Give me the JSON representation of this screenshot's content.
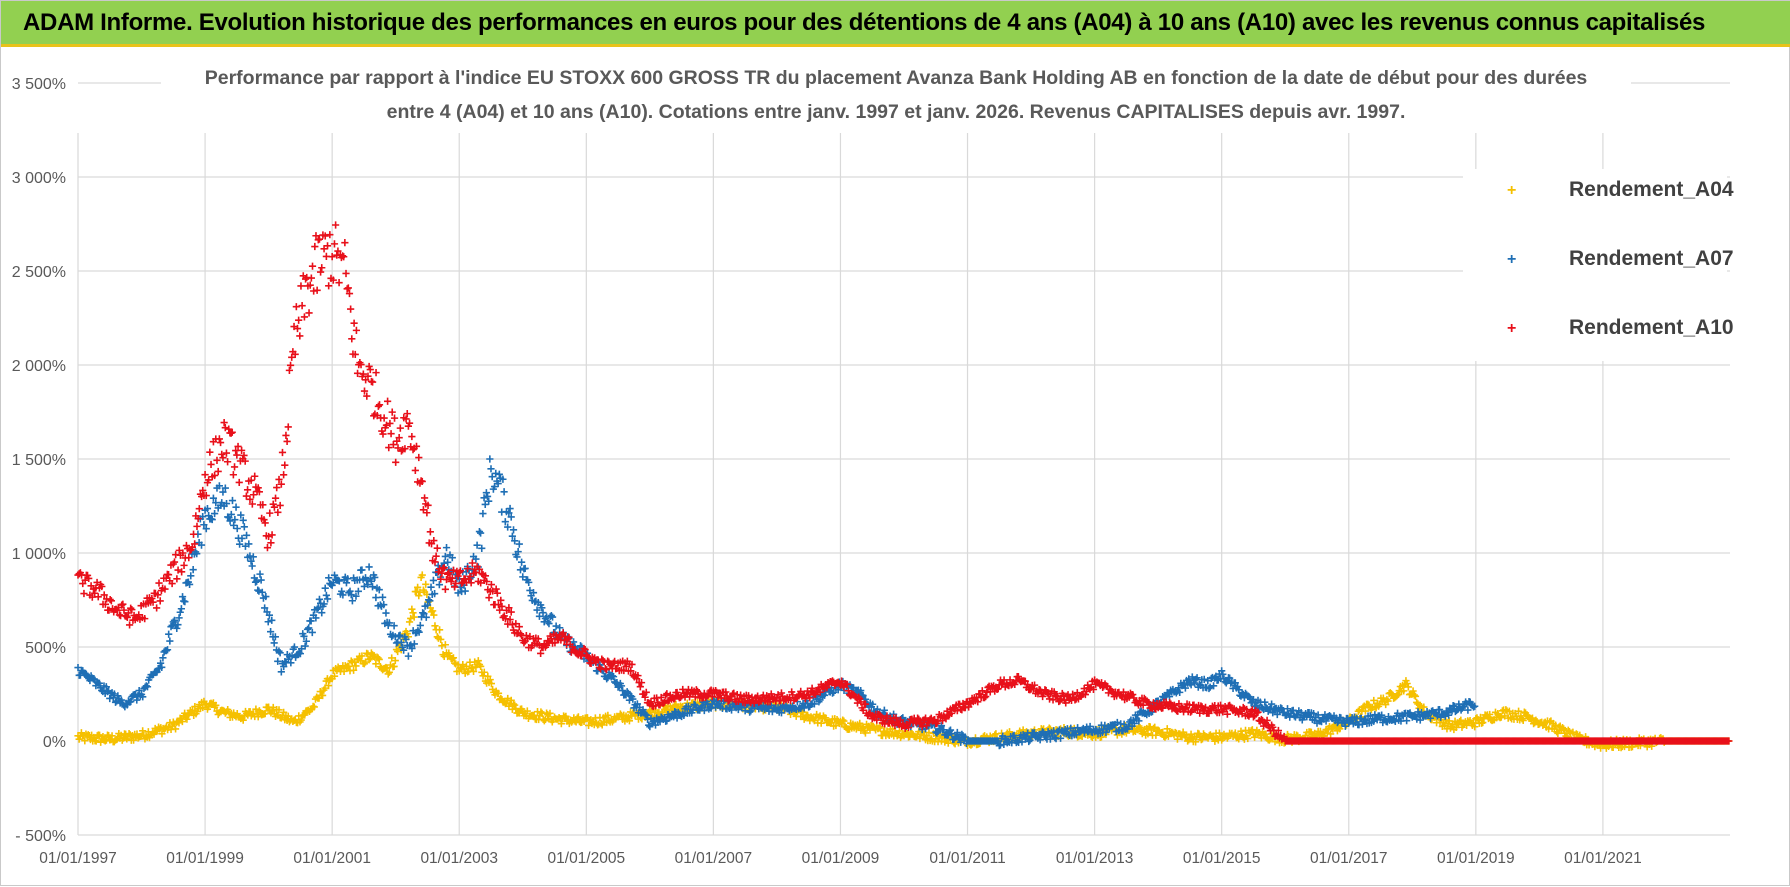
{
  "header": {
    "title": "ADAM Informe. Evolution historique des performances en euros pour des détentions de 4 ans (A04) à 10 ans (A10) avec les revenus connus capitalisés"
  },
  "chart_data": {
    "type": "scatter",
    "title_line1": "Performance par rapport à l'indice EU STOXX 600 GROSS TR  du placement Avanza Bank Holding AB en fonction de la date de début pour des durées",
    "title_line2": "entre 4 (A04) et 10 ans (A10).  Cotations entre janv. 1997 et janv. 2026. Revenus CAPITALISES depuis avr. 1997.",
    "xlabel": "",
    "ylabel": "",
    "xlim": [
      1997.0,
      2023.0
    ],
    "ylim": [
      -500,
      3500
    ],
    "grid": true,
    "x_ticks": [
      1997,
      1999,
      2001,
      2003,
      2005,
      2007,
      2009,
      2011,
      2013,
      2015,
      2017,
      2019,
      2021
    ],
    "x_tick_labels": [
      "01/01/1997",
      "01/01/1999",
      "01/01/2001",
      "01/01/2003",
      "01/01/2005",
      "01/01/2007",
      "01/01/2009",
      "01/01/2011",
      "01/01/2013",
      "01/01/2015",
      "01/01/2017",
      "01/01/2019",
      "01/01/2021"
    ],
    "y_ticks": [
      -500,
      0,
      500,
      1000,
      1500,
      2000,
      2500,
      3000,
      3500
    ],
    "y_tick_labels": [
      "- 500%",
      "0%",
      "500%",
      "1 000%",
      "1 500%",
      "2 000%",
      "2 500%",
      "3 000%",
      "3 500%"
    ],
    "legend_position": "top-right",
    "series": [
      {
        "name": "Rendement_A04",
        "color": "#f5c000",
        "marker": "+",
        "x": [
          1997.0,
          1997.5,
          1998.0,
          1998.5,
          1999.0,
          1999.3,
          1999.6,
          2000.0,
          2000.4,
          2000.7,
          2001.0,
          2001.3,
          2001.6,
          2001.9,
          2002.2,
          2002.4,
          2002.6,
          2002.8,
          2003.0,
          2003.3,
          2003.6,
          2004.0,
          2004.5,
          2005.0,
          2005.5,
          2006.0,
          2006.5,
          2007.0,
          2007.5,
          2008.0,
          2008.5,
          2009.0,
          2009.5,
          2010.0,
          2010.5,
          2011.0,
          2011.5,
          2012.0,
          2012.5,
          2013.0,
          2013.5,
          2014.0,
          2014.5,
          2015.0,
          2015.5,
          2016.0,
          2016.5,
          2017.0,
          2017.3,
          2017.6,
          2017.9,
          2018.2,
          2018.6,
          2019.0,
          2019.4,
          2019.8,
          2020.2,
          2020.6,
          2021.0,
          2021.5,
          2022.0,
          2022.5,
          2023.0
        ],
        "y": [
          20,
          10,
          30,
          80,
          200,
          150,
          130,
          170,
          100,
          180,
          350,
          400,
          450,
          380,
          600,
          850,
          650,
          450,
          380,
          400,
          250,
          150,
          120,
          100,
          120,
          150,
          180,
          200,
          190,
          180,
          130,
          90,
          60,
          40,
          20,
          0,
          20,
          40,
          50,
          40,
          60,
          50,
          20,
          20,
          40,
          10,
          30,
          100,
          180,
          220,
          300,
          150,
          80,
          100,
          150,
          130,
          80,
          10,
          -20,
          -10,
          0,
          0,
          0
        ]
      },
      {
        "name": "Rendement_A07",
        "color": "#1f6fb5",
        "marker": "+",
        "x": [
          1997.0,
          1997.3,
          1997.7,
          1998.0,
          1998.3,
          1998.7,
          1999.0,
          1999.3,
          1999.6,
          1999.9,
          2000.2,
          2000.5,
          2000.8,
          2001.0,
          2001.3,
          2001.6,
          2001.9,
          2002.2,
          2002.5,
          2002.8,
          2003.0,
          2003.3,
          2003.5,
          2003.8,
          2004.0,
          2004.3,
          2004.6,
          2005.0,
          2005.5,
          2006.0,
          2006.5,
          2007.0,
          2007.5,
          2008.0,
          2008.5,
          2009.0,
          2009.3,
          2009.6,
          2010.0,
          2010.5,
          2011.0,
          2011.5,
          2012.0,
          2012.5,
          2013.0,
          2013.5,
          2014.0,
          2014.5,
          2014.8,
          2015.0,
          2015.5,
          2016.0,
          2016.5,
          2017.0,
          2017.5,
          2018.0,
          2018.5,
          2019.0
        ],
        "y": [
          380,
          300,
          200,
          250,
          400,
          800,
          1200,
          1300,
          1100,
          800,
          400,
          500,
          700,
          850,
          800,
          900,
          600,
          500,
          700,
          1000,
          800,
          1000,
          1450,
          1200,
          900,
          700,
          550,
          450,
          300,
          100,
          150,
          200,
          180,
          170,
          200,
          300,
          250,
          150,
          100,
          70,
          0,
          0,
          20,
          40,
          60,
          80,
          200,
          320,
          300,
          350,
          200,
          150,
          120,
          100,
          120,
          130,
          150,
          200
        ]
      },
      {
        "name": "Rendement_A10",
        "color": "#e8101a",
        "marker": "+",
        "x": [
          1997.0,
          1997.3,
          1997.6,
          1997.9,
          1998.2,
          1998.5,
          1998.8,
          1999.0,
          1999.3,
          1999.5,
          1999.8,
          2000.0,
          2000.2,
          2000.4,
          2000.6,
          2000.8,
          2001.0,
          2001.2,
          2001.4,
          2001.6,
          2001.8,
          2002.0,
          2002.2,
          2002.4,
          2002.6,
          2002.8,
          2003.0,
          2003.3,
          2003.6,
          2004.0,
          2004.3,
          2004.6,
          2005.0,
          2005.3,
          2005.7,
          2006.0,
          2006.5,
          2007.0,
          2007.5,
          2008.0,
          2008.5,
          2009.0,
          2009.5,
          2010.0,
          2010.5,
          2011.0,
          2011.5,
          2011.8,
          2012.2,
          2012.6,
          2013.0,
          2013.4,
          2013.8,
          2014.2,
          2014.6,
          2015.0,
          2015.5,
          2016.0,
          2016.5,
          2017.0,
          2018.0,
          2019.0,
          2020.0,
          2021.0,
          2022.0,
          2023.0
        ],
        "y": [
          850,
          800,
          700,
          650,
          750,
          900,
          1050,
          1400,
          1600,
          1500,
          1300,
          1100,
          1350,
          2100,
          2400,
          2550,
          2600,
          2500,
          2000,
          1900,
          1750,
          1600,
          1700,
          1400,
          1000,
          850,
          850,
          900,
          750,
          550,
          500,
          550,
          450,
          400,
          400,
          200,
          250,
          250,
          220,
          230,
          250,
          320,
          130,
          90,
          110,
          200,
          300,
          320,
          250,
          220,
          300,
          250,
          200,
          180,
          170,
          170,
          150,
          0,
          0,
          0,
          0,
          0,
          0,
          0,
          0,
          0
        ]
      }
    ]
  }
}
